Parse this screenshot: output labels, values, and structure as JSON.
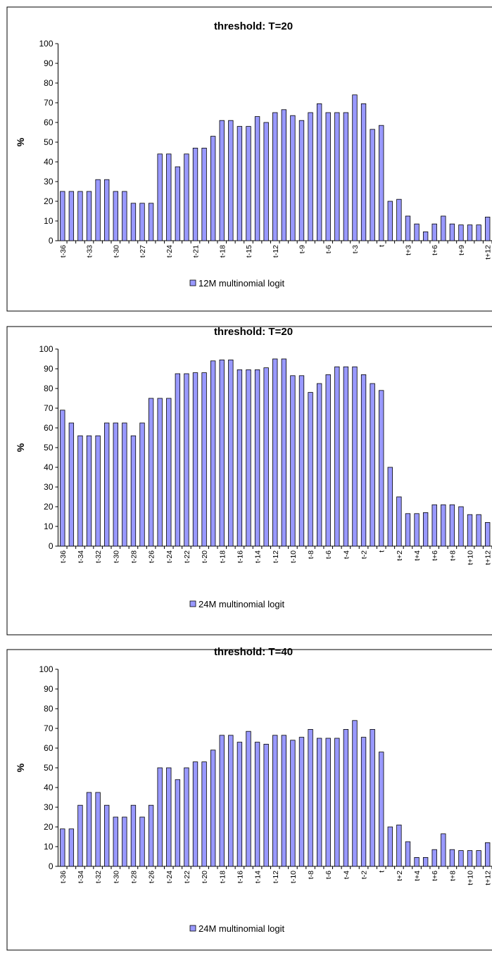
{
  "chart_data": [
    {
      "type": "bar",
      "title": "threshold: T=20",
      "y_label": "%",
      "categories": [
        "t-36",
        null,
        null,
        "t-33",
        null,
        null,
        "t-30",
        null,
        null,
        "t-27",
        null,
        null,
        "t-24",
        null,
        null,
        "t-21",
        null,
        null,
        "t-18",
        null,
        null,
        "t-15",
        null,
        null,
        "t-12",
        null,
        null,
        "t-9",
        null,
        null,
        "t-6",
        null,
        null,
        "t-3",
        null,
        null,
        "t",
        null,
        null,
        "t+3",
        null,
        null,
        "t+6",
        null,
        null,
        "t+9",
        null,
        null,
        "t+12"
      ],
      "series": [
        {
          "name": "12M multinomial logit",
          "color": "#9999ff",
          "values": [
            25,
            25,
            25,
            25,
            31,
            31,
            25,
            25,
            19,
            19,
            19,
            44,
            44,
            37.5,
            44,
            47,
            47,
            53,
            61,
            61,
            58,
            58,
            63,
            60,
            65,
            66.5,
            63.5,
            61,
            65,
            69.5,
            65,
            65,
            65,
            74,
            69.5,
            56.5,
            58.5,
            20,
            21,
            12.5,
            8.5,
            4.5,
            8.5,
            12.5,
            8.5,
            8,
            8,
            8,
            12
          ]
        }
      ],
      "ylim": [
        0,
        100
      ],
      "yticks": [
        0,
        10,
        20,
        30,
        40,
        50,
        60,
        70,
        80,
        90,
        100
      ],
      "legend": "bottom"
    },
    {
      "type": "bar",
      "title": "threshold: T=20",
      "y_label": "%",
      "categories": [
        "t-36",
        null,
        "t-34",
        null,
        "t-32",
        null,
        "t-30",
        null,
        "t-28",
        null,
        "t-26",
        null,
        "t-24",
        null,
        "t-22",
        null,
        "t-20",
        null,
        "t-18",
        null,
        "t-16",
        null,
        "t-14",
        null,
        "t-12",
        null,
        "t-10",
        null,
        "t-8",
        null,
        "t-6",
        null,
        "t-4",
        null,
        "t-2",
        null,
        "t",
        null,
        "t+2",
        null,
        "t+4",
        null,
        "t+6",
        null,
        "t+8",
        null,
        "t+10",
        null,
        "t+12"
      ],
      "series": [
        {
          "name": "24M multinomial logit",
          "color": "#9999ff",
          "values": [
            69,
            62.5,
            56,
            56,
            56,
            62.5,
            62.5,
            62.5,
            56,
            62.5,
            75,
            75,
            75,
            87.5,
            87.5,
            88,
            88,
            94,
            94.5,
            94.5,
            89.5,
            89.5,
            89.5,
            90.5,
            95,
            95,
            86.5,
            86.5,
            78,
            82.5,
            87,
            91,
            91,
            91,
            87,
            82.5,
            79,
            40,
            25,
            16.5,
            16.5,
            17,
            21,
            21,
            21,
            20,
            16,
            16,
            12
          ]
        }
      ],
      "ylim": [
        0,
        100
      ],
      "yticks": [
        0,
        10,
        20,
        30,
        40,
        50,
        60,
        70,
        80,
        90,
        100
      ],
      "legend": "bottom"
    },
    {
      "type": "bar",
      "title": "threshold: T=40",
      "y_label": "%",
      "categories": [
        "t-36",
        null,
        "t-34",
        null,
        "t-32",
        null,
        "t-30",
        null,
        "t-28",
        null,
        "t-26",
        null,
        "t-24",
        null,
        "t-22",
        null,
        "t-20",
        null,
        "t-18",
        null,
        "t-16",
        null,
        "t-14",
        null,
        "t-12",
        null,
        "t-10",
        null,
        "t-8",
        null,
        "t-6",
        null,
        "t-4",
        null,
        "t-2",
        null,
        "t",
        null,
        "t+2",
        null,
        "t+4",
        null,
        "t+6",
        null,
        "t+8",
        null,
        "t+10",
        null,
        "t+12"
      ],
      "series": [
        {
          "name": "24M multinomial logit",
          "color": "#9999ff",
          "values": [
            19,
            19,
            31,
            37.5,
            37.5,
            31,
            25,
            25,
            31,
            25,
            31,
            50,
            50,
            44,
            50,
            53,
            53,
            59,
            66.5,
            66.5,
            63,
            68.5,
            63,
            62,
            66.5,
            66.5,
            64,
            65.5,
            69.5,
            65,
            65,
            65,
            69.5,
            74,
            65.5,
            69.5,
            58,
            20,
            21,
            12.5,
            4.5,
            4.5,
            8.5,
            16.5,
            8.5,
            8,
            8,
            8,
            12
          ]
        }
      ],
      "ylim": [
        0,
        100
      ],
      "yticks": [
        0,
        10,
        20,
        30,
        40,
        50,
        60,
        70,
        80,
        90,
        100
      ],
      "legend": "bottom"
    }
  ]
}
